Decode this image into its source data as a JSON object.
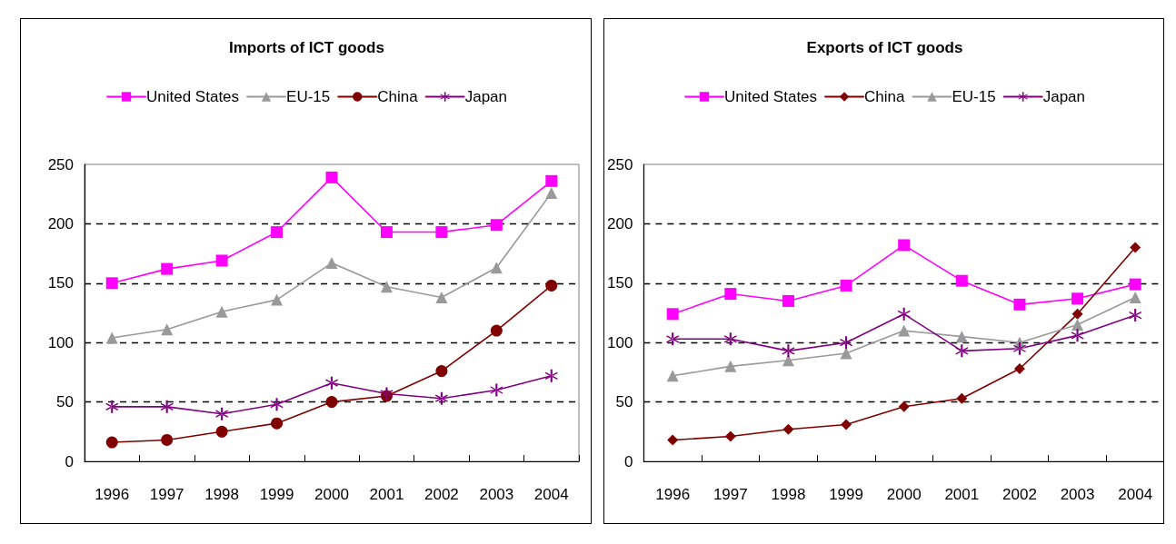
{
  "chart_data": [
    {
      "type": "line",
      "title": "Imports of ICT goods",
      "categories": [
        "1996",
        "1997",
        "1998",
        "1999",
        "2000",
        "2001",
        "2002",
        "2003",
        "2004"
      ],
      "series": [
        {
          "name": "United States",
          "color": "#ff00ff",
          "marker": "square",
          "values": [
            150,
            162,
            169,
            193,
            239,
            193,
            193,
            199,
            236
          ]
        },
        {
          "name": "EU-15",
          "color": "#999999",
          "marker": "triangle",
          "values": [
            104,
            111,
            126,
            136,
            167,
            147,
            138,
            163,
            226
          ]
        },
        {
          "name": "China",
          "color": "#800000",
          "marker": "circle",
          "values": [
            16,
            18,
            25,
            32,
            50,
            55,
            76,
            110,
            148
          ]
        },
        {
          "name": "Japan",
          "color": "#800080",
          "marker": "cross",
          "values": [
            46,
            46,
            40,
            48,
            66,
            57,
            53,
            60,
            72
          ]
        }
      ],
      "ylim": [
        0,
        250
      ],
      "yticks": [
        0,
        50,
        100,
        150,
        200,
        250
      ],
      "grid": "y",
      "legend": "top"
    },
    {
      "type": "line",
      "title": "Exports of ICT goods",
      "categories": [
        "1996",
        "1997",
        "1998",
        "1999",
        "2000",
        "2001",
        "2002",
        "2003",
        "2004"
      ],
      "series": [
        {
          "name": "United States",
          "color": "#ff00ff",
          "marker": "square",
          "values": [
            124,
            141,
            135,
            148,
            182,
            152,
            132,
            137,
            149
          ]
        },
        {
          "name": "China",
          "color": "#800000",
          "marker": "diamond",
          "values": [
            18,
            21,
            27,
            31,
            46,
            53,
            78,
            124,
            180
          ]
        },
        {
          "name": "EU-15",
          "color": "#999999",
          "marker": "triangle",
          "values": [
            72,
            80,
            85,
            91,
            110,
            105,
            100,
            115,
            138
          ]
        },
        {
          "name": "Japan",
          "color": "#800080",
          "marker": "cross",
          "values": [
            103,
            103,
            93,
            100,
            124,
            93,
            95,
            106,
            123
          ]
        }
      ],
      "ylim": [
        0,
        250
      ],
      "yticks": [
        0,
        50,
        100,
        150,
        200,
        250
      ],
      "grid": "y",
      "legend": "top"
    }
  ]
}
